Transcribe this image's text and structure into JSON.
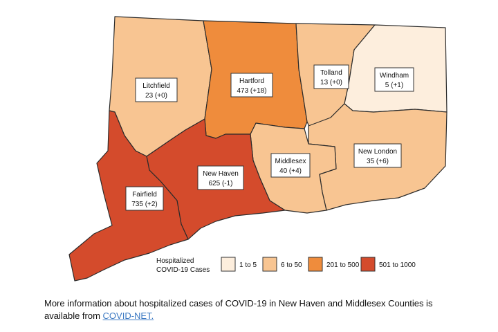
{
  "legend": {
    "title_line1": "Hospitalized",
    "title_line2": "COVID-19 Cases",
    "classes": [
      {
        "label": "1 to 5",
        "color": "#fdeedd"
      },
      {
        "label": "6 to 50",
        "color": "#f8c592"
      },
      {
        "label": "201 to 500",
        "color": "#ef8c3c"
      },
      {
        "label": "501 to 1000",
        "color": "#d44b2c"
      }
    ]
  },
  "counties": {
    "litchfield": {
      "name": "Litchfield",
      "value": "23 (+0)",
      "class": 1
    },
    "hartford": {
      "name": "Hartford",
      "value": "473 (+18)",
      "class": 2
    },
    "tolland": {
      "name": "Tolland",
      "value": "13 (+0)",
      "class": 1
    },
    "windham": {
      "name": "Windham",
      "value": "5 (+1)",
      "class": 0
    },
    "middlesex": {
      "name": "Middlesex",
      "value": "40 (+4)",
      "class": 1
    },
    "new_london": {
      "name": "New London",
      "value": "35 (+6)",
      "class": 1
    },
    "new_haven": {
      "name": "New Haven",
      "value": "625 (-1)",
      "class": 3
    },
    "fairfield": {
      "name": "Fairfield",
      "value": "735 (+2)",
      "class": 3
    }
  },
  "footer": {
    "text": "More information about hospitalized cases of COVID-19 in New Haven and Middlesex Counties is available from ",
    "link_text": "COVID-NET.",
    "link_after": ""
  }
}
